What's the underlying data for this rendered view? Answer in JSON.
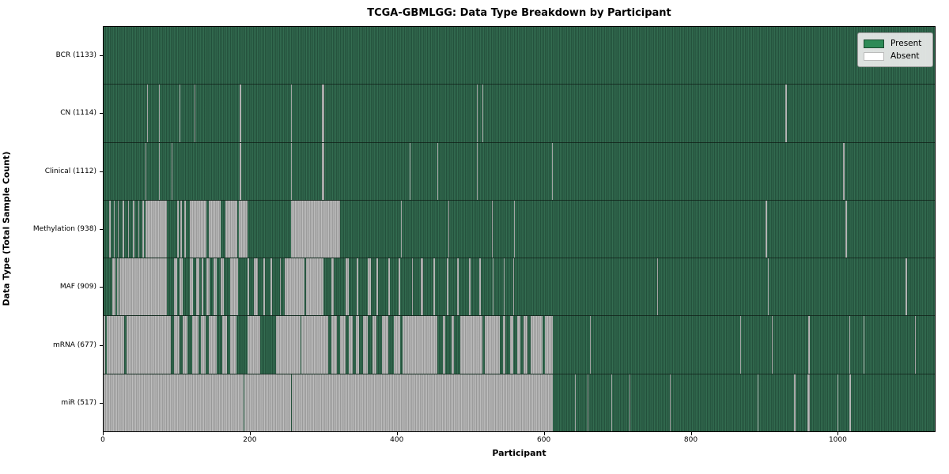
{
  "chart_data": {
    "type": "heatmap",
    "title": "TCGA-GBMLGG: Data Type Breakdown by Participant",
    "xlabel": "Participant",
    "ylabel": "Data Type (Total Sample Count)",
    "x_ticks": [
      0,
      200,
      400,
      600,
      800,
      1000
    ],
    "x_max": 1133,
    "grid": false,
    "legend_position": "upper right",
    "legend": [
      {
        "label": "Present",
        "color": "#2e8b57"
      },
      {
        "label": "Absent",
        "color": "#ffffff"
      }
    ],
    "rows": [
      {
        "label": "BCR (1133)",
        "data_type": "BCR",
        "present_count": 1133,
        "absent_segments": []
      },
      {
        "label": "CN (1114)",
        "data_type": "CN",
        "present_count": 1114,
        "absent_segments": [
          [
            59,
            60
          ],
          [
            75,
            76
          ],
          [
            104,
            105
          ],
          [
            124,
            125
          ],
          [
            185,
            188
          ],
          [
            256,
            257
          ],
          [
            298,
            301
          ],
          [
            509,
            510
          ],
          [
            516,
            517
          ],
          [
            929,
            931
          ]
        ]
      },
      {
        "label": "Clinical (1112)",
        "data_type": "Clinical",
        "present_count": 1112,
        "absent_segments": [
          [
            57,
            58
          ],
          [
            75,
            76
          ],
          [
            93,
            94
          ],
          [
            185,
            188
          ],
          [
            256,
            257
          ],
          [
            298,
            301
          ],
          [
            417,
            418
          ],
          [
            455,
            456
          ],
          [
            509,
            510
          ],
          [
            611,
            612
          ],
          [
            1008,
            1010
          ]
        ]
      },
      {
        "label": "Methylation (938)",
        "data_type": "Methylation",
        "present_count": 938,
        "absent_segments": [
          [
            8,
            10
          ],
          [
            14,
            15
          ],
          [
            19,
            21
          ],
          [
            26,
            28
          ],
          [
            33,
            35
          ],
          [
            40,
            42
          ],
          [
            47,
            49
          ],
          [
            53,
            55
          ],
          [
            57,
            86
          ],
          [
            100,
            102
          ],
          [
            105,
            107
          ],
          [
            110,
            112
          ],
          [
            118,
            140
          ],
          [
            143,
            160
          ],
          [
            166,
            182
          ],
          [
            184,
            196
          ],
          [
            255,
            322
          ],
          [
            405,
            406
          ],
          [
            470,
            471
          ],
          [
            529,
            530
          ],
          [
            560,
            561
          ],
          [
            902,
            904
          ],
          [
            1011,
            1013
          ]
        ]
      },
      {
        "label": "MAF (909)",
        "data_type": "MAF",
        "present_count": 909,
        "absent_segments": [
          [
            12,
            16
          ],
          [
            18,
            20
          ],
          [
            22,
            86
          ],
          [
            96,
            100
          ],
          [
            104,
            108
          ],
          [
            118,
            122
          ],
          [
            126,
            130
          ],
          [
            134,
            136
          ],
          [
            140,
            144
          ],
          [
            150,
            154
          ],
          [
            160,
            164
          ],
          [
            172,
            183
          ],
          [
            196,
            198
          ],
          [
            205,
            210
          ],
          [
            218,
            220
          ],
          [
            228,
            230
          ],
          [
            240,
            242
          ],
          [
            247,
            274
          ],
          [
            276,
            300
          ],
          [
            310,
            314
          ],
          [
            330,
            334
          ],
          [
            345,
            347
          ],
          [
            360,
            364
          ],
          [
            372,
            374
          ],
          [
            388,
            390
          ],
          [
            402,
            404
          ],
          [
            420,
            422
          ],
          [
            432,
            436
          ],
          [
            450,
            452
          ],
          [
            468,
            470
          ],
          [
            482,
            484
          ],
          [
            498,
            500
          ],
          [
            512,
            514
          ],
          [
            530,
            532
          ],
          [
            545,
            547
          ],
          [
            558,
            560
          ],
          [
            755,
            756
          ],
          [
            905,
            906
          ],
          [
            1093,
            1095
          ]
        ]
      },
      {
        "label": "mRNA (677)",
        "data_type": "mRNA",
        "present_count": 677,
        "absent_segments": [
          [
            0,
            2
          ],
          [
            4,
            28
          ],
          [
            31,
            92
          ],
          [
            96,
            104
          ],
          [
            108,
            114
          ],
          [
            121,
            129
          ],
          [
            133,
            139
          ],
          [
            143,
            154
          ],
          [
            162,
            168
          ],
          [
            172,
            181
          ],
          [
            196,
            213
          ],
          [
            235,
            268
          ],
          [
            270,
            306
          ],
          [
            310,
            318
          ],
          [
            322,
            330
          ],
          [
            334,
            340
          ],
          [
            344,
            348
          ],
          [
            354,
            360
          ],
          [
            366,
            372
          ],
          [
            380,
            388
          ],
          [
            396,
            404
          ],
          [
            408,
            455
          ],
          [
            462,
            466
          ],
          [
            474,
            478
          ],
          [
            486,
            516
          ],
          [
            520,
            540
          ],
          [
            544,
            548
          ],
          [
            554,
            558
          ],
          [
            564,
            568
          ],
          [
            572,
            578
          ],
          [
            582,
            598
          ],
          [
            602,
            612
          ],
          [
            663,
            664
          ],
          [
            868,
            869
          ],
          [
            911,
            912
          ],
          [
            961,
            963
          ],
          [
            1017,
            1018
          ],
          [
            1036,
            1037
          ],
          [
            1106,
            1107
          ]
        ]
      },
      {
        "label": "miR (517)",
        "data_type": "miR",
        "present_count": 517,
        "absent_segments": [
          [
            0,
            190
          ],
          [
            192,
            255
          ],
          [
            257,
            612
          ],
          [
            643,
            644
          ],
          [
            660,
            661
          ],
          [
            692,
            693
          ],
          [
            717,
            718
          ],
          [
            772,
            773
          ],
          [
            891,
            892
          ],
          [
            941,
            943
          ],
          [
            959,
            963
          ],
          [
            1000,
            1001
          ],
          [
            1017,
            1019
          ]
        ]
      }
    ]
  }
}
